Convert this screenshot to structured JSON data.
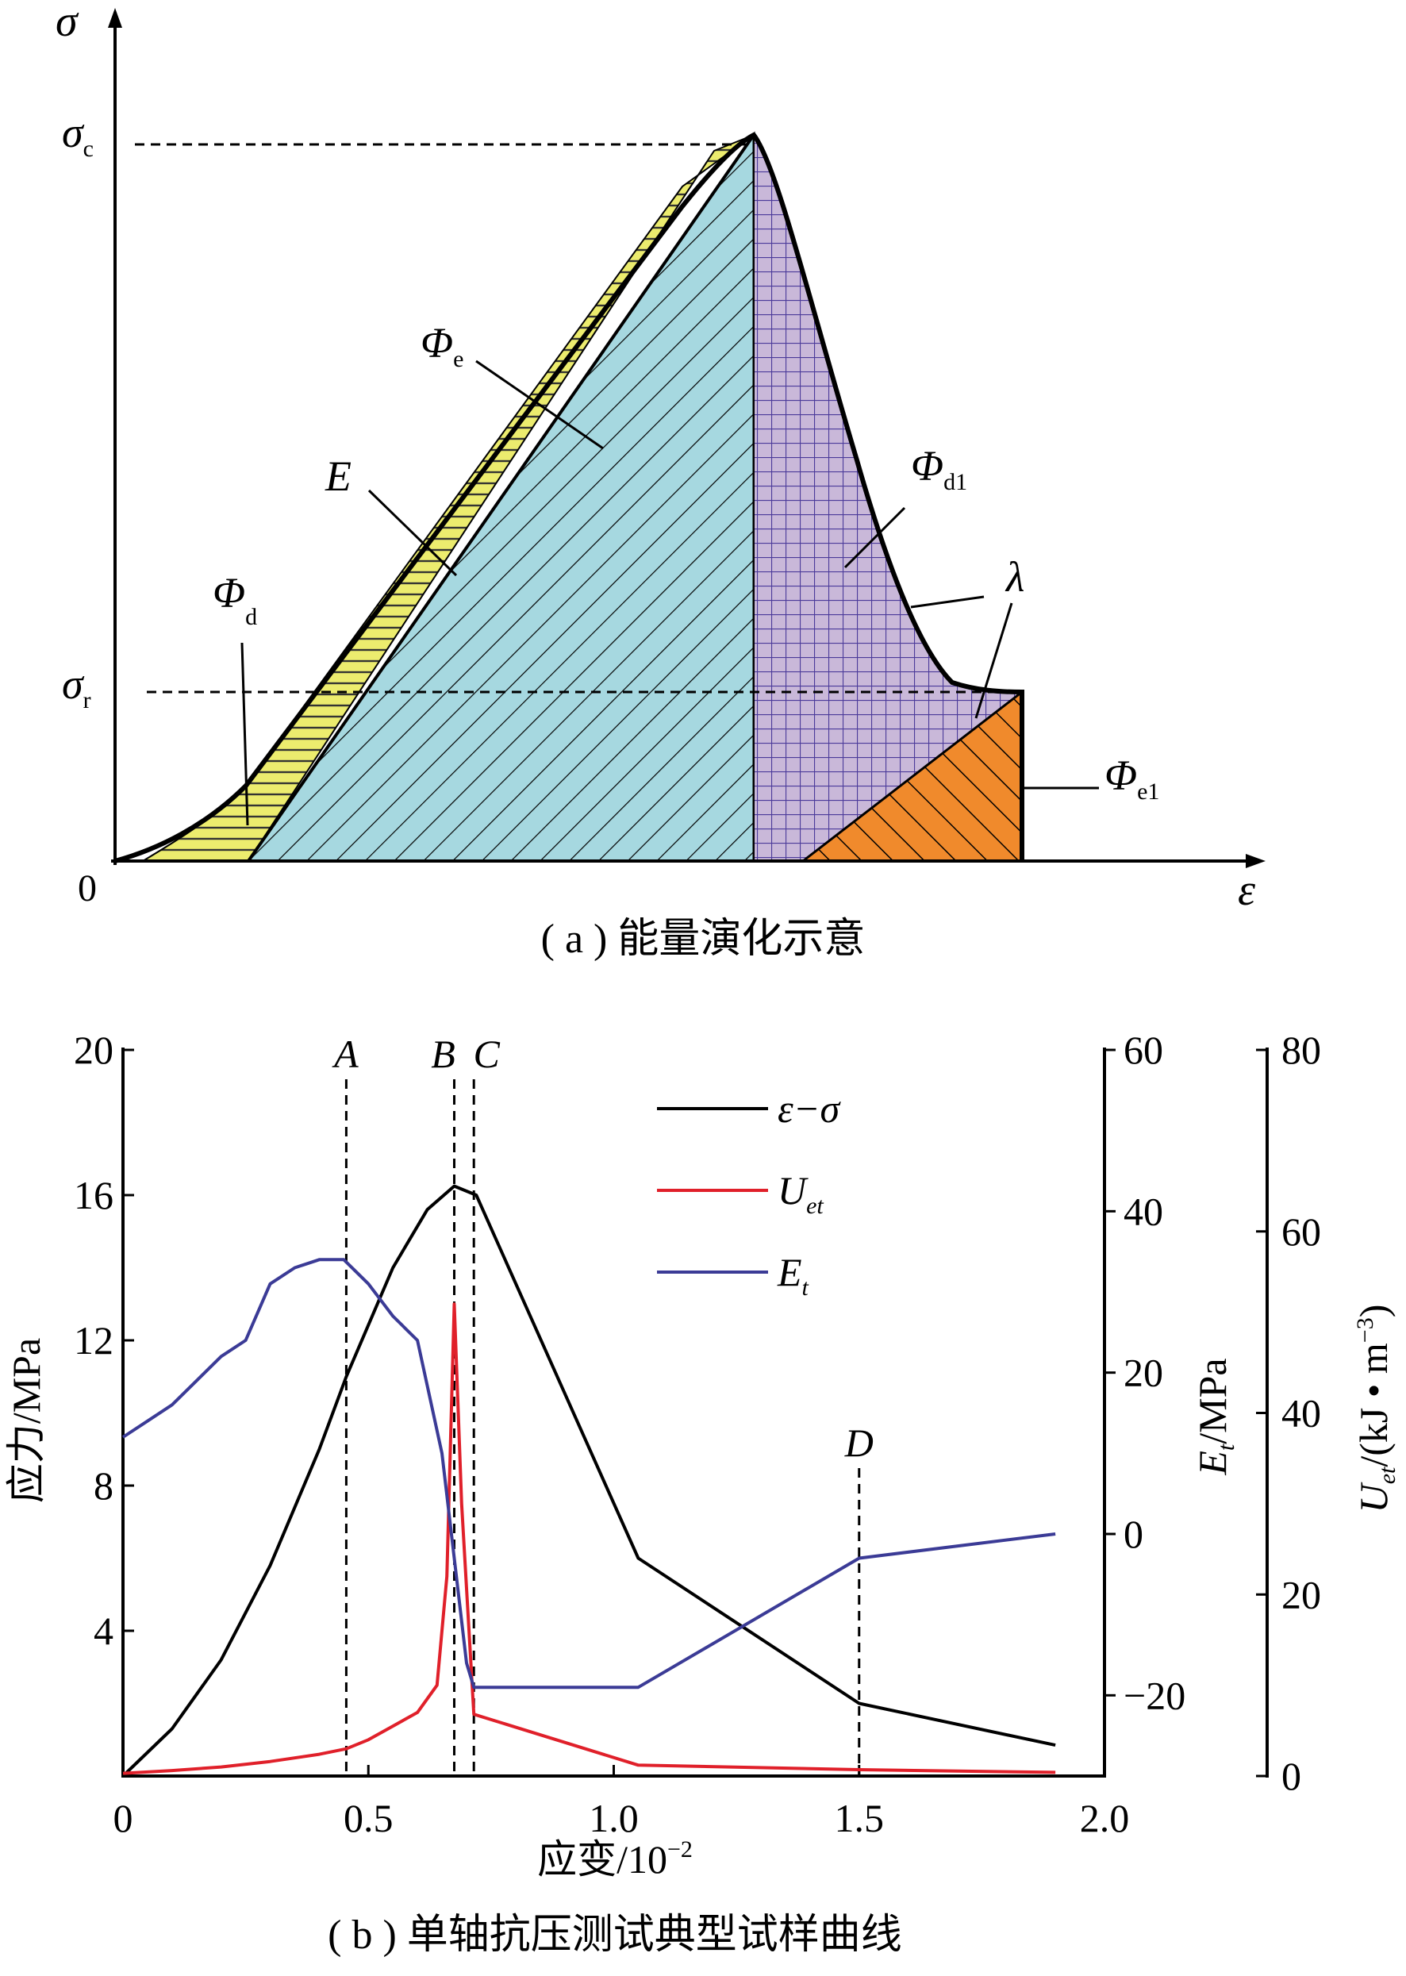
{
  "panel_a": {
    "caption": "( a ) 能量演化示意",
    "y_axis_symbol": "σ",
    "x_axis_symbol": "ε",
    "origin": "0",
    "sigma_c": {
      "sym": "σ",
      "sub": "c"
    },
    "sigma_r": {
      "sym": "σ",
      "sub": "r"
    },
    "regions": {
      "phi_e": {
        "sym": "Φ",
        "sub": "e",
        "color": "#a6d8e0"
      },
      "phi_d": {
        "sym": "Φ",
        "sub": "d",
        "color": "#ecec6e"
      },
      "phi_d1": {
        "sym": "Φ",
        "sub": "d1",
        "color": "#c9b8d9"
      },
      "phi_e1": {
        "sym": "Φ",
        "sub": "e1",
        "color": "#f08a2c"
      },
      "E": "E",
      "lambda": "λ"
    }
  },
  "panel_b": {
    "caption": "( b ) 单轴抗压测试典型试样曲线",
    "xlabel": "应变/10",
    "xlabel_sup": "−2",
    "ylabel_left": "应力/MPa",
    "ylabel_mid": {
      "sym": "E",
      "sub": "t",
      "rest": "/MPa"
    },
    "ylabel_right": {
      "sym": "U",
      "sub": "et",
      "rest": "/(kJ • m",
      "sup": "−3",
      "close": ")"
    },
    "x_ticks": [
      "0",
      "0.5",
      "1.0",
      "1.5",
      "2.0"
    ],
    "y_left_ticks": [
      "20",
      "16",
      "12",
      "8",
      "4"
    ],
    "y_mid_ticks": [
      "60",
      "40",
      "20",
      "0",
      "−20"
    ],
    "y_right_ticks": [
      "80",
      "60",
      "40",
      "20",
      "0"
    ],
    "markers": [
      {
        "label": "A",
        "x": 0.455
      },
      {
        "label": "B",
        "x": 0.675
      },
      {
        "label": "C",
        "x": 0.715
      },
      {
        "label": "D",
        "x": 1.5
      }
    ],
    "legend": [
      {
        "name": "ε−σ",
        "sub": "",
        "color": "#000000"
      },
      {
        "name": "U",
        "sub": "et",
        "color": "#e0202a"
      },
      {
        "name": "E",
        "sub": "t",
        "color": "#3b3b96"
      }
    ]
  },
  "chart_data": {
    "type": "line",
    "x_range": [
      0,
      2.0
    ],
    "series": [
      {
        "name": "ε−σ",
        "axis": "left",
        "ylim": [
          0,
          20
        ],
        "x": [
          0,
          0.1,
          0.2,
          0.3,
          0.4,
          0.455,
          0.55,
          0.62,
          0.675,
          0.72,
          1.05,
          1.5,
          1.9
        ],
        "y": [
          0,
          1.3,
          3.2,
          5.8,
          9.0,
          11.0,
          14.0,
          15.6,
          16.25,
          16.0,
          6.0,
          2.0,
          0.85
        ]
      },
      {
        "name": "U_et",
        "axis": "right",
        "ylim": [
          0,
          80
        ],
        "x": [
          0,
          0.1,
          0.2,
          0.3,
          0.4,
          0.455,
          0.5,
          0.55,
          0.6,
          0.64,
          0.66,
          0.675,
          0.69,
          0.715,
          1.05,
          1.5,
          1.9
        ],
        "y": [
          0.3,
          0.6,
          1.0,
          1.6,
          2.4,
          3.0,
          4.0,
          5.5,
          7.0,
          10.0,
          22.0,
          52.0,
          30.0,
          6.8,
          1.2,
          0.7,
          0.4
        ]
      },
      {
        "name": "E_t",
        "axis": "mid",
        "ylim": [
          -30,
          60
        ],
        "x": [
          0,
          0.05,
          0.1,
          0.15,
          0.2,
          0.25,
          0.3,
          0.35,
          0.4,
          0.45,
          0.5,
          0.55,
          0.6,
          0.65,
          0.7,
          0.715,
          1.05,
          1.5,
          1.9
        ],
        "y": [
          12,
          14,
          16,
          19,
          22,
          24,
          31,
          33,
          34,
          34,
          31,
          27,
          24,
          10,
          -16,
          -19,
          -19,
          -3,
          0
        ]
      }
    ]
  }
}
